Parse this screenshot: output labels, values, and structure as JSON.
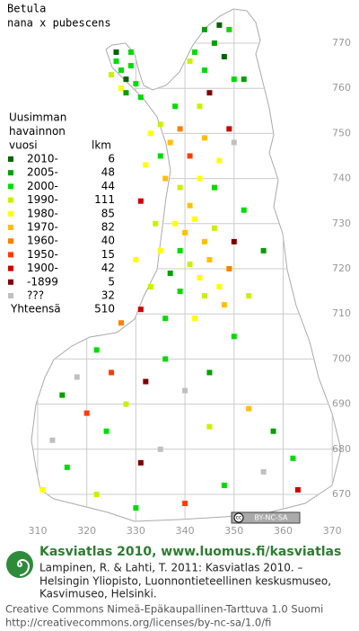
{
  "header": {
    "title": "Betula",
    "subtitle": "nana x pubescens"
  },
  "legend": {
    "heading": [
      "Uusimman",
      "havainnon",
      "vuosi"
    ],
    "count_heading": "lkm",
    "items": [
      {
        "label": "2010-",
        "count": 6,
        "color": "#006400"
      },
      {
        "label": "2005-",
        "count": 48,
        "color": "#00a000"
      },
      {
        "label": "2000-",
        "count": 44,
        "color": "#00dc00"
      },
      {
        "label": "1990-",
        "count": 111,
        "color": "#ccf000"
      },
      {
        "label": "1980-",
        "count": 85,
        "color": "#ffff00"
      },
      {
        "label": "1970-",
        "count": 82,
        "color": "#ffc000"
      },
      {
        "label": "1960-",
        "count": 40,
        "color": "#ff8000"
      },
      {
        "label": "1950-",
        "count": 15,
        "color": "#ff3c00"
      },
      {
        "label": "1900-",
        "count": 42,
        "color": "#d00000"
      },
      {
        "label": "-1899",
        "count": 5,
        "color": "#800000"
      },
      {
        "label": "???",
        "count": 32,
        "color": "#c0c0c0"
      }
    ],
    "total_label": "Yhteensä",
    "total": 510
  },
  "map": {
    "xticks": [
      310,
      320,
      330,
      340,
      350,
      360,
      370
    ],
    "yticks": [
      670,
      680,
      690,
      700,
      710,
      720,
      730,
      740,
      750,
      760,
      770
    ],
    "license_badge": [
      "cc",
      "BY-NC-SA"
    ],
    "points": [
      [
        326,
        766,
        2
      ],
      [
        327,
        764,
        2
      ],
      [
        325,
        763,
        3
      ],
      [
        328,
        762,
        0
      ],
      [
        329,
        765,
        2
      ],
      [
        327,
        760,
        4
      ],
      [
        330,
        761,
        2
      ],
      [
        328,
        759,
        1
      ],
      [
        331,
        758,
        2
      ],
      [
        326,
        768,
        0
      ],
      [
        329,
        768,
        2
      ],
      [
        344,
        773,
        1
      ],
      [
        347,
        774,
        0
      ],
      [
        349,
        773,
        2
      ],
      [
        346,
        770,
        1
      ],
      [
        342,
        768,
        2
      ],
      [
        348,
        767,
        0
      ],
      [
        344,
        764,
        2
      ],
      [
        350,
        762,
        2
      ],
      [
        341,
        766,
        3
      ],
      [
        345,
        759,
        9
      ],
      [
        343,
        756,
        3
      ],
      [
        338,
        756,
        2
      ],
      [
        352,
        762,
        1
      ],
      [
        333,
        750,
        4
      ],
      [
        335,
        752,
        3
      ],
      [
        337,
        748,
        5
      ],
      [
        339,
        751,
        6
      ],
      [
        341,
        745,
        7
      ],
      [
        344,
        749,
        5
      ],
      [
        335,
        745,
        2
      ],
      [
        349,
        751,
        8
      ],
      [
        350,
        748,
        10
      ],
      [
        347,
        744,
        4
      ],
      [
        336,
        740,
        5
      ],
      [
        339,
        738,
        3
      ],
      [
        343,
        740,
        4
      ],
      [
        346,
        738,
        2
      ],
      [
        332,
        743,
        4
      ],
      [
        341,
        734,
        5
      ],
      [
        331,
        735,
        8
      ],
      [
        338,
        730,
        4
      ],
      [
        340,
        728,
        5
      ],
      [
        342,
        731,
        4
      ],
      [
        344,
        726,
        5
      ],
      [
        346,
        729,
        3
      ],
      [
        339,
        724,
        2
      ],
      [
        341,
        721,
        3
      ],
      [
        343,
        718,
        4
      ],
      [
        345,
        722,
        5
      ],
      [
        347,
        716,
        4
      ],
      [
        349,
        720,
        6
      ],
      [
        337,
        719,
        1
      ],
      [
        335,
        724,
        4
      ],
      [
        334,
        730,
        3
      ],
      [
        350,
        726,
        9
      ],
      [
        352,
        733,
        2
      ],
      [
        348,
        712,
        5
      ],
      [
        344,
        714,
        3
      ],
      [
        339,
        715,
        2
      ],
      [
        333,
        716,
        3
      ],
      [
        331,
        711,
        8
      ],
      [
        336,
        709,
        2
      ],
      [
        342,
        709,
        4
      ],
      [
        353,
        714,
        3
      ],
      [
        356,
        724,
        1
      ],
      [
        330,
        722,
        4
      ],
      [
        327,
        708,
        6
      ],
      [
        322,
        702,
        2
      ],
      [
        318,
        696,
        10
      ],
      [
        315,
        692,
        1
      ],
      [
        320,
        688,
        7
      ],
      [
        324,
        684,
        2
      ],
      [
        313,
        682,
        10
      ],
      [
        328,
        690,
        3
      ],
      [
        332,
        695,
        9
      ],
      [
        336,
        700,
        2
      ],
      [
        340,
        693,
        10
      ],
      [
        345,
        697,
        1
      ],
      [
        350,
        705,
        2
      ],
      [
        353,
        689,
        5
      ],
      [
        358,
        684,
        1
      ],
      [
        362,
        678,
        2
      ],
      [
        356,
        675,
        10
      ],
      [
        348,
        672,
        2
      ],
      [
        340,
        668,
        7
      ],
      [
        330,
        667,
        2
      ],
      [
        322,
        670,
        3
      ],
      [
        311,
        671,
        4
      ],
      [
        316,
        676,
        2
      ],
      [
        335,
        680,
        10
      ],
      [
        345,
        685,
        3
      ],
      [
        363,
        671,
        8
      ],
      [
        325,
        697,
        7
      ],
      [
        331,
        677,
        9
      ]
    ]
  },
  "footer": {
    "site": "Kasviatlas 2010, www.luomus.fi/kasviatlas",
    "citation": [
      "Lampinen, R. & Lahti, T. 2011: Kasviatlas 2010. –",
      "Helsingin Yliopisto, Luonnontieteellinen keskusmuseo,",
      "Kasvimuseo, Helsinki."
    ],
    "license": [
      "Creative Commons Nimeä-Epäkaupallinen-Tarttuva 1.0 Suomi",
      "http://creativecommons.org/licenses/by-nc-sa/1.0/fi"
    ]
  }
}
